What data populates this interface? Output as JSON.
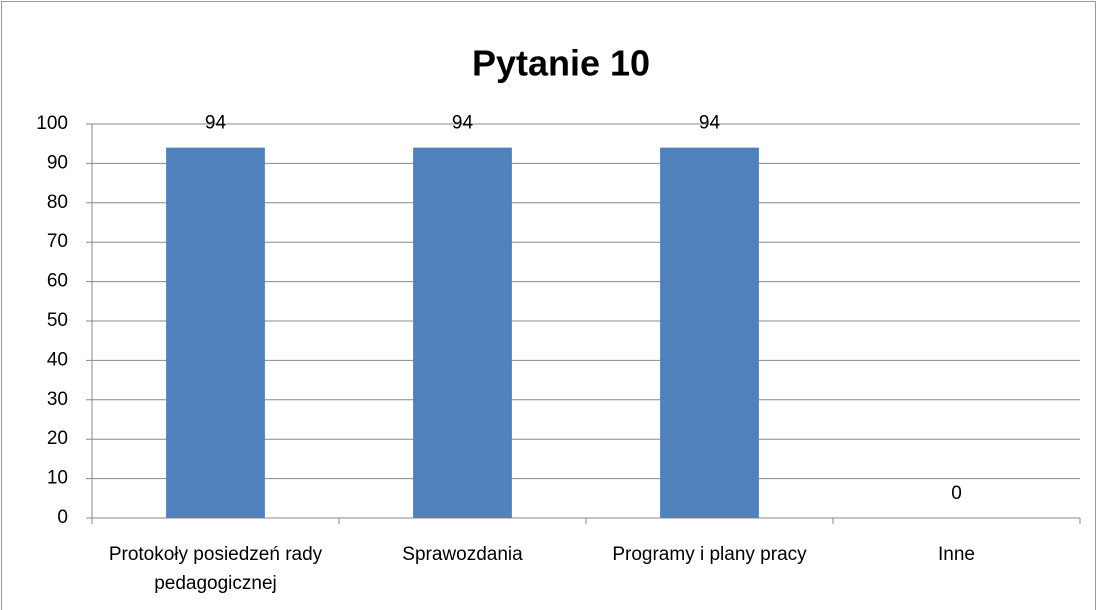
{
  "chart_data": {
    "type": "bar",
    "title": "Pytanie 10",
    "categories": [
      "Protokoły posiedzeń rady pedagogicznej",
      "Sprawozdania",
      "Programy i plany pracy",
      "Inne"
    ],
    "values": [
      94,
      94,
      94,
      0
    ],
    "color": "#4f81bd",
    "ylim": [
      0,
      100
    ],
    "yticks": [
      0,
      10,
      20,
      30,
      40,
      50,
      60,
      70,
      80,
      90,
      100
    ],
    "grid": true
  }
}
